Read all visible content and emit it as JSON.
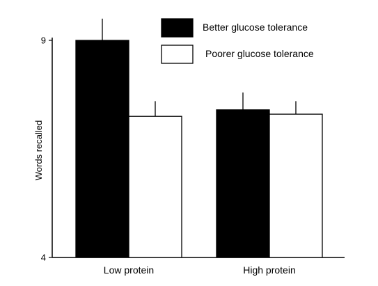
{
  "chart_data": {
    "type": "bar",
    "categories": [
      "Low protein",
      "High protein"
    ],
    "series": [
      {
        "name": "Better glucose tolerance",
        "values": [
          9.0,
          7.4
        ],
        "error": [
          0.5,
          0.4
        ],
        "color": "#000000"
      },
      {
        "name": "Poorer glucose tolerance",
        "values": [
          7.25,
          7.3
        ],
        "error": [
          0.35,
          0.3
        ],
        "color": "#ffffff"
      }
    ],
    "ylabel": "Words recalled",
    "xlabel": "",
    "ylim": [
      4,
      9
    ],
    "yticks": [
      "4",
      "9"
    ],
    "grid": false,
    "legend": "top-right"
  }
}
